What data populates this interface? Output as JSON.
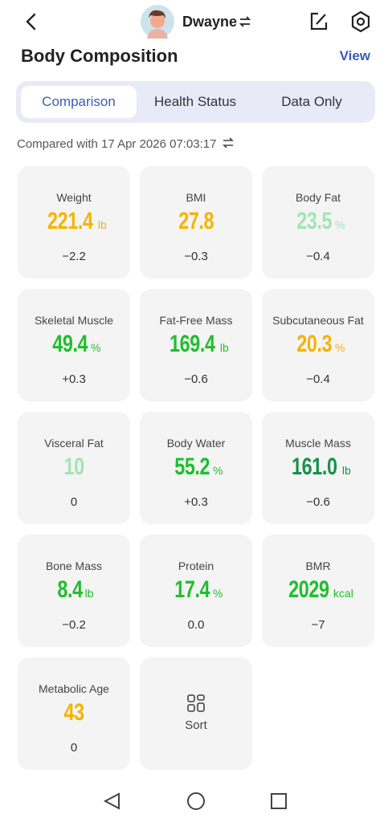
{
  "header": {
    "user": "Dwayne"
  },
  "section": {
    "title": "Body Composition",
    "link": "View"
  },
  "tabs": {
    "items": [
      "Comparison",
      "Health Status",
      "Data Only"
    ],
    "active": 0
  },
  "compared": "Compared with 17 Apr 2026 07:03:17",
  "metrics": [
    {
      "label": "Weight",
      "value": "221.4",
      "unit": "lb",
      "change": "−2.2",
      "color": "#f5b301"
    },
    {
      "label": "BMI",
      "value": "27.8",
      "change": "−0.3",
      "color": "#f5b301"
    },
    {
      "label": "Body Fat",
      "value": "23.5",
      "unit": "%",
      "change": "−0.4",
      "color": "#a3e4b4"
    },
    {
      "label": "Skeletal Muscle",
      "value": "49.4",
      "unit": "%",
      "change": "+0.3",
      "color": "#1fbf2c"
    },
    {
      "label": "Fat-Free Mass",
      "value": "169.4",
      "unit": "lb",
      "change": "−0.6",
      "color": "#1fbf2c"
    },
    {
      "label": "Subcutaneous Fat",
      "value": "20.3",
      "unit": "%",
      "change": "−0.4",
      "color": "#f5b301"
    },
    {
      "label": "Visceral Fat",
      "value": "10",
      "change": "0",
      "color": "#a3e4b4"
    },
    {
      "label": "Body Water",
      "value": "55.2",
      "unit": "%",
      "change": "+0.3",
      "color": "#1fbf2c"
    },
    {
      "label": "Muscle Mass",
      "value": "161.0",
      "unit": "lb",
      "change": "−0.6",
      "color": "#17924a"
    },
    {
      "label": "Bone Mass",
      "value": "8.4",
      "unit": "lb",
      "change": "−0.2",
      "color": "#1fbf2c"
    },
    {
      "label": "Protein",
      "value": "17.4",
      "unit": "%",
      "change": "0.0",
      "color": "#1fbf2c"
    },
    {
      "label": "BMR",
      "value": "2029",
      "unit": "kcal",
      "change": "−7",
      "color": "#1fbf2c"
    },
    {
      "label": "Metabolic Age",
      "value": "43",
      "change": "0",
      "color": "#f5b301"
    }
  ],
  "sort": "Sort"
}
